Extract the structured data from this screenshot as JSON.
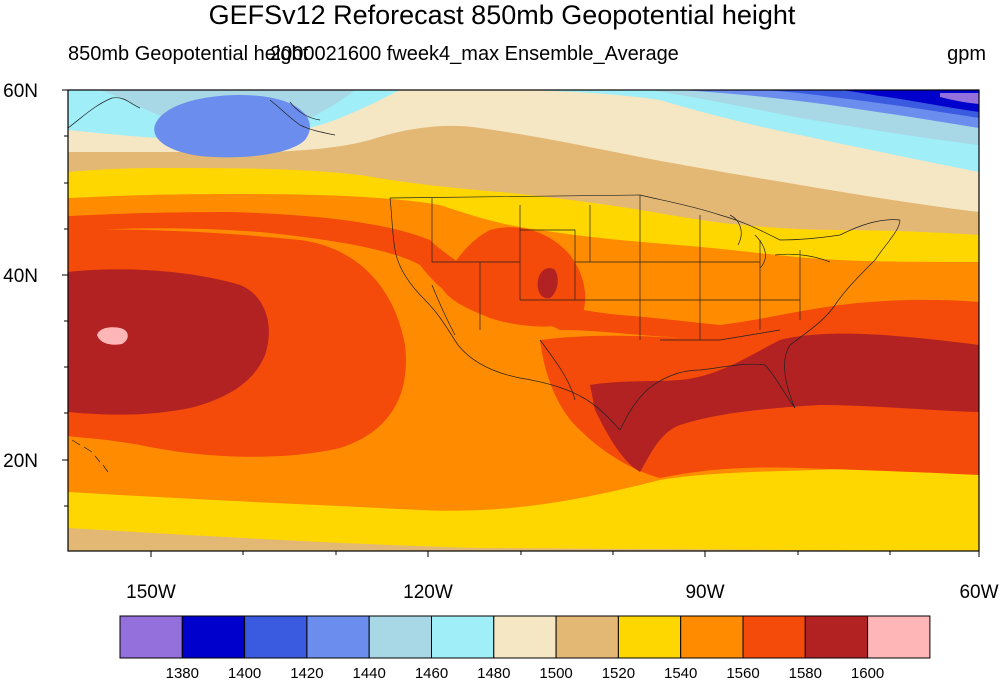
{
  "title": "GEFSv12 Reforecast 850mb Geopotential height",
  "left_string": "850mb Geopotential height",
  "center_string": "2000021600 fweek4_max Ensemble_Average",
  "right_string": "gpm",
  "axes": {
    "lat_labels": [
      "60N",
      "40N",
      "20N"
    ],
    "lon_labels": [
      "150W",
      "120W",
      "90W",
      "60W"
    ]
  },
  "colorbar": {
    "colors": [
      "#9370DB",
      "#0000CD",
      "#3A5BE0",
      "#6B8EEE",
      "#A8D8E6",
      "#A0EEF8",
      "#F5E6C4",
      "#E3B874",
      "#FFD700",
      "#FF8C00",
      "#F44A0A",
      "#B22222",
      "#FFB6B6"
    ],
    "labels": [
      "1380",
      "1400",
      "1420",
      "1440",
      "1460",
      "1480",
      "1500",
      "1520",
      "1540",
      "1560",
      "1580",
      "1600"
    ]
  },
  "map_colors": {
    "c1600": "#FFB6B6",
    "c1580": "#B22222",
    "c1560": "#F44A0A",
    "c1540": "#FF8C00",
    "c1520": "#FFD700",
    "c1500": "#E3B874",
    "c1480": "#F5E6C4",
    "c1460": "#A0EEF8",
    "c1440": "#A8D8E6",
    "c1420": "#6B8EEE",
    "c1400": "#3A5BE0",
    "c1380": "#0000CD",
    "c1360": "#9370DB"
  }
}
